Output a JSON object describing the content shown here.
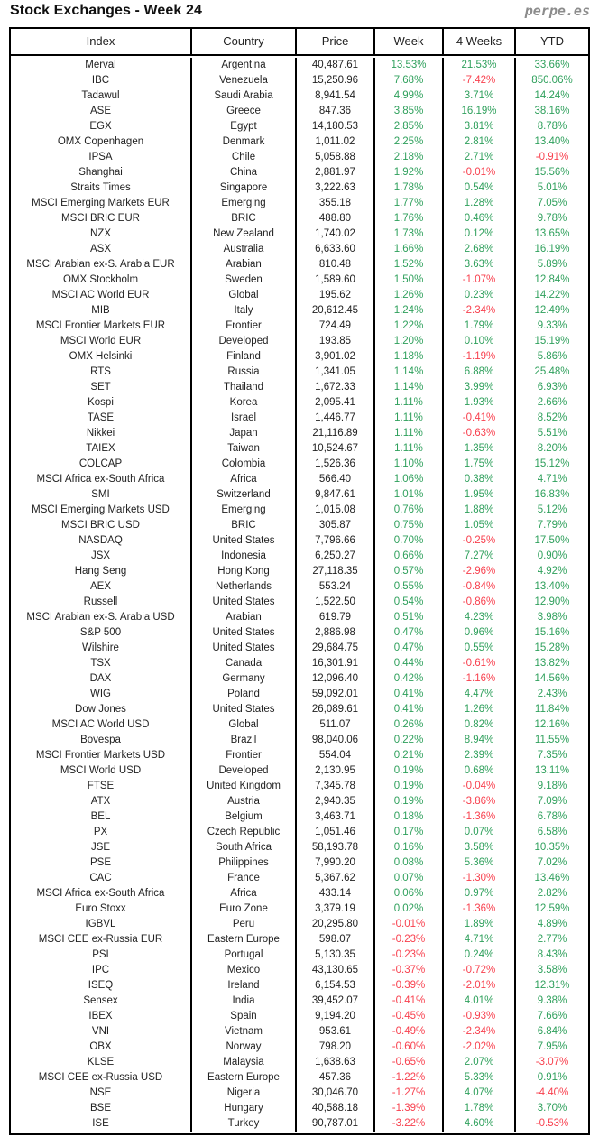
{
  "header": {
    "title": "Stock Exchanges - Week 24",
    "brand": "perpe.es"
  },
  "colors": {
    "positive": "#2fa05c",
    "negative": "#f8404e",
    "brand_gray": "#8c8c8c",
    "border": "#000000"
  },
  "chart_data": {
    "type": "table",
    "title": "Stock Exchanges - Week 24",
    "columns": [
      "Index",
      "Country",
      "Price",
      "Week",
      "4 Weeks",
      "YTD"
    ],
    "rows": [
      [
        "Merval",
        "Argentina",
        "40,487.61",
        "13.53%",
        "21.53%",
        "33.66%"
      ],
      [
        "IBC",
        "Venezuela",
        "15,250.96",
        "7.68%",
        "-7.42%",
        "850.06%"
      ],
      [
        "Tadawul",
        "Saudi Arabia",
        "8,941.54",
        "4.99%",
        "3.71%",
        "14.24%"
      ],
      [
        "ASE",
        "Greece",
        "847.36",
        "3.85%",
        "16.19%",
        "38.16%"
      ],
      [
        "EGX",
        "Egypt",
        "14,180.53",
        "2.85%",
        "3.81%",
        "8.78%"
      ],
      [
        "OMX Copenhagen",
        "Denmark",
        "1,011.02",
        "2.25%",
        "2.81%",
        "13.40%"
      ],
      [
        "IPSA",
        "Chile",
        "5,058.88",
        "2.18%",
        "2.71%",
        "-0.91%"
      ],
      [
        "Shanghai",
        "China",
        "2,881.97",
        "1.92%",
        "-0.01%",
        "15.56%"
      ],
      [
        "Straits Times",
        "Singapore",
        "3,222.63",
        "1.78%",
        "0.54%",
        "5.01%"
      ],
      [
        "MSCI Emerging Markets EUR",
        "Emerging",
        "355.18",
        "1.77%",
        "1.28%",
        "7.05%"
      ],
      [
        "MSCI BRIC EUR",
        "BRIC",
        "488.80",
        "1.76%",
        "0.46%",
        "9.78%"
      ],
      [
        "NZX",
        "New Zealand",
        "1,740.02",
        "1.73%",
        "0.12%",
        "13.65%"
      ],
      [
        "ASX",
        "Australia",
        "6,633.60",
        "1.66%",
        "2.68%",
        "16.19%"
      ],
      [
        "MSCI Arabian ex-S. Arabia EUR",
        "Arabian",
        "810.48",
        "1.52%",
        "3.63%",
        "5.89%"
      ],
      [
        "OMX Stockholm",
        "Sweden",
        "1,589.60",
        "1.50%",
        "-1.07%",
        "12.84%"
      ],
      [
        "MSCI AC World EUR",
        "Global",
        "195.62",
        "1.26%",
        "0.23%",
        "14.22%"
      ],
      [
        "MIB",
        "Italy",
        "20,612.45",
        "1.24%",
        "-2.34%",
        "12.49%"
      ],
      [
        "MSCI Frontier Markets EUR",
        "Frontier",
        "724.49",
        "1.22%",
        "1.79%",
        "9.33%"
      ],
      [
        "MSCI World EUR",
        "Developed",
        "193.85",
        "1.20%",
        "0.10%",
        "15.19%"
      ],
      [
        "OMX Helsinki",
        "Finland",
        "3,901.02",
        "1.18%",
        "-1.19%",
        "5.86%"
      ],
      [
        "RTS",
        "Russia",
        "1,341.05",
        "1.14%",
        "6.88%",
        "25.48%"
      ],
      [
        "SET",
        "Thailand",
        "1,672.33",
        "1.14%",
        "3.99%",
        "6.93%"
      ],
      [
        "Kospi",
        "Korea",
        "2,095.41",
        "1.11%",
        "1.93%",
        "2.66%"
      ],
      [
        "TASE",
        "Israel",
        "1,446.77",
        "1.11%",
        "-0.41%",
        "8.52%"
      ],
      [
        "Nikkei",
        "Japan",
        "21,116.89",
        "1.11%",
        "-0.63%",
        "5.51%"
      ],
      [
        "TAIEX",
        "Taiwan",
        "10,524.67",
        "1.11%",
        "1.35%",
        "8.20%"
      ],
      [
        "COLCAP",
        "Colombia",
        "1,526.36",
        "1.10%",
        "1.75%",
        "15.12%"
      ],
      [
        "MSCI Africa ex-South Africa",
        "Africa",
        "566.40",
        "1.06%",
        "0.38%",
        "4.71%"
      ],
      [
        "SMI",
        "Switzerland",
        "9,847.61",
        "1.01%",
        "1.95%",
        "16.83%"
      ],
      [
        "MSCI Emerging Markets USD",
        "Emerging",
        "1,015.08",
        "0.76%",
        "1.88%",
        "5.12%"
      ],
      [
        "MSCI BRIC USD",
        "BRIC",
        "305.87",
        "0.75%",
        "1.05%",
        "7.79%"
      ],
      [
        "NASDAQ",
        "United States",
        "7,796.66",
        "0.70%",
        "-0.25%",
        "17.50%"
      ],
      [
        "JSX",
        "Indonesia",
        "6,250.27",
        "0.66%",
        "7.27%",
        "0.90%"
      ],
      [
        "Hang Seng",
        "Hong Kong",
        "27,118.35",
        "0.57%",
        "-2.96%",
        "4.92%"
      ],
      [
        "AEX",
        "Netherlands",
        "553.24",
        "0.55%",
        "-0.84%",
        "13.40%"
      ],
      [
        "Russell",
        "United States",
        "1,522.50",
        "0.54%",
        "-0.86%",
        "12.90%"
      ],
      [
        "MSCI Arabian ex-S. Arabia USD",
        "Arabian",
        "619.79",
        "0.51%",
        "4.23%",
        "3.98%"
      ],
      [
        "S&P 500",
        "United States",
        "2,886.98",
        "0.47%",
        "0.96%",
        "15.16%"
      ],
      [
        "Wilshire",
        "United States",
        "29,684.75",
        "0.47%",
        "0.55%",
        "15.28%"
      ],
      [
        "TSX",
        "Canada",
        "16,301.91",
        "0.44%",
        "-0.61%",
        "13.82%"
      ],
      [
        "DAX",
        "Germany",
        "12,096.40",
        "0.42%",
        "-1.16%",
        "14.56%"
      ],
      [
        "WIG",
        "Poland",
        "59,092.01",
        "0.41%",
        "4.47%",
        "2.43%"
      ],
      [
        "Dow Jones",
        "United States",
        "26,089.61",
        "0.41%",
        "1.26%",
        "11.84%"
      ],
      [
        "MSCI AC World USD",
        "Global",
        "511.07",
        "0.26%",
        "0.82%",
        "12.16%"
      ],
      [
        "Bovespa",
        "Brazil",
        "98,040.06",
        "0.22%",
        "8.94%",
        "11.55%"
      ],
      [
        "MSCI Frontier Markets USD",
        "Frontier",
        "554.04",
        "0.21%",
        "2.39%",
        "7.35%"
      ],
      [
        "MSCI World USD",
        "Developed",
        "2,130.95",
        "0.19%",
        "0.68%",
        "13.11%"
      ],
      [
        "FTSE",
        "United Kingdom",
        "7,345.78",
        "0.19%",
        "-0.04%",
        "9.18%"
      ],
      [
        "ATX",
        "Austria",
        "2,940.35",
        "0.19%",
        "-3.86%",
        "7.09%"
      ],
      [
        "BEL",
        "Belgium",
        "3,463.71",
        "0.18%",
        "-1.36%",
        "6.78%"
      ],
      [
        "PX",
        "Czech Republic",
        "1,051.46",
        "0.17%",
        "0.07%",
        "6.58%"
      ],
      [
        "JSE",
        "South Africa",
        "58,193.78",
        "0.16%",
        "3.58%",
        "10.35%"
      ],
      [
        "PSE",
        "Philippines",
        "7,990.20",
        "0.08%",
        "5.36%",
        "7.02%"
      ],
      [
        "CAC",
        "France",
        "5,367.62",
        "0.07%",
        "-1.30%",
        "13.46%"
      ],
      [
        "MSCI Africa ex-South Africa",
        "Africa",
        "433.14",
        "0.06%",
        "0.97%",
        "2.82%"
      ],
      [
        "Euro Stoxx",
        "Euro Zone",
        "3,379.19",
        "0.02%",
        "-1.36%",
        "12.59%"
      ],
      [
        "IGBVL",
        "Peru",
        "20,295.80",
        "-0.01%",
        "1.89%",
        "4.89%"
      ],
      [
        "MSCI CEE ex-Russia EUR",
        "Eastern Europe",
        "598.07",
        "-0.23%",
        "4.71%",
        "2.77%"
      ],
      [
        "PSI",
        "Portugal",
        "5,130.35",
        "-0.23%",
        "0.24%",
        "8.43%"
      ],
      [
        "IPC",
        "Mexico",
        "43,130.65",
        "-0.37%",
        "-0.72%",
        "3.58%"
      ],
      [
        "ISEQ",
        "Ireland",
        "6,154.53",
        "-0.39%",
        "-2.01%",
        "12.31%"
      ],
      [
        "Sensex",
        "India",
        "39,452.07",
        "-0.41%",
        "4.01%",
        "9.38%"
      ],
      [
        "IBEX",
        "Spain",
        "9,194.20",
        "-0.45%",
        "-0.93%",
        "7.66%"
      ],
      [
        "VNI",
        "Vietnam",
        "953.61",
        "-0.49%",
        "-2.34%",
        "6.84%"
      ],
      [
        "OBX",
        "Norway",
        "798.20",
        "-0.60%",
        "-2.02%",
        "7.95%"
      ],
      [
        "KLSE",
        "Malaysia",
        "1,638.63",
        "-0.65%",
        "2.07%",
        "-3.07%"
      ],
      [
        "MSCI CEE ex-Russia USD",
        "Eastern Europe",
        "457.36",
        "-1.22%",
        "5.33%",
        "0.91%"
      ],
      [
        "NSE",
        "Nigeria",
        "30,046.70",
        "-1.27%",
        "4.07%",
        "-4.40%"
      ],
      [
        "BSE",
        "Hungary",
        "40,588.18",
        "-1.39%",
        "1.78%",
        "3.70%"
      ],
      [
        "ISE",
        "Turkey",
        "90,787.01",
        "-3.22%",
        "4.60%",
        "-0.53%"
      ]
    ]
  }
}
